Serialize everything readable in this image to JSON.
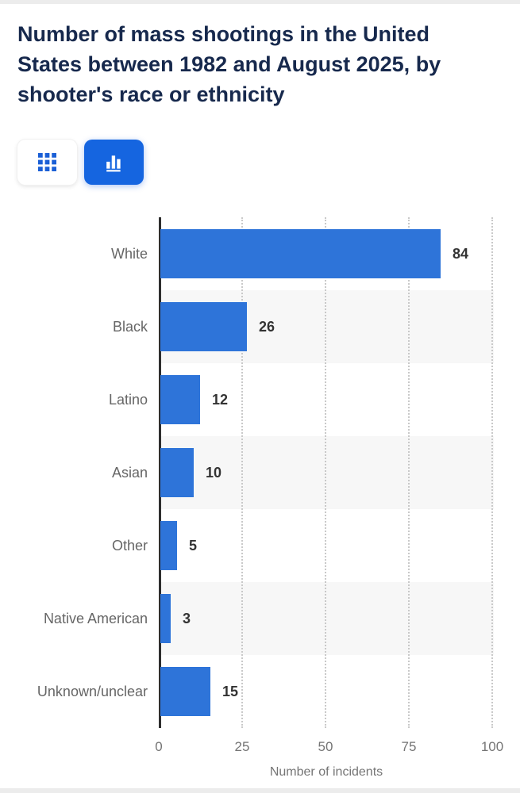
{
  "page": {
    "title": "Number of mass shootings in the United States between 1982 and August 2025, by shooter's race or ethnicity",
    "title_lines": [
      "Number of mass shootings in the United",
      "States between 1982 and August 2025, by",
      "shooter's race or ethnicity"
    ]
  },
  "toolbar": {
    "table_view_button": {
      "icon": "grid-icon",
      "selected": false
    },
    "chart_view_button": {
      "icon": "bar-chart-icon",
      "selected": true
    }
  },
  "colors": {
    "accent_blue": "#1565e0",
    "bar_blue": "#2e74d9",
    "title_navy": "#17294d",
    "category_label_gray": "#666666",
    "tick_gray": "#757575",
    "value_label_dark": "#333333",
    "row_band_gray": "#f7f7f7",
    "gridline_gray": "#c9c9c9",
    "axis_dark": "#2e2e2e"
  },
  "chart_data": {
    "type": "bar",
    "orientation": "horizontal",
    "title": "Number of mass shootings in the United States between 1982 and August 2025, by shooter's race or ethnicity",
    "categories": [
      "White",
      "Black",
      "Latino",
      "Asian",
      "Other",
      "Native American",
      "Unknown/unclear"
    ],
    "values": [
      84,
      26,
      12,
      10,
      5,
      3,
      15
    ],
    "xlabel": "Number of incidents",
    "ylabel": "",
    "xlim": [
      0,
      100
    ],
    "xticks": [
      0,
      25,
      50,
      75,
      100
    ],
    "grid": "vertical-dotted",
    "legend": "none",
    "bar_color": "#2e74d9",
    "row_banding": "alternate"
  }
}
